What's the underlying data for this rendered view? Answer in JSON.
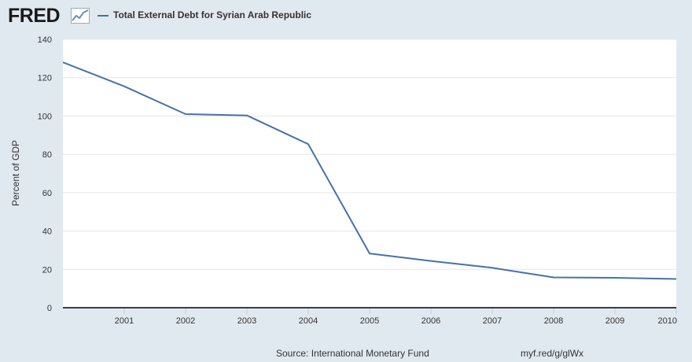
{
  "header": {
    "logo_text": "FRED",
    "logo_icon": "line-chart-icon",
    "legend_label": "Total External Debt for Syrian Arab Republic"
  },
  "colors": {
    "series": "#4572a7",
    "background": "#e1e9f0",
    "plot_background": "#ffffff",
    "grid": "#e6e6e6"
  },
  "footer": {
    "source": "Source: International Monetary Fund",
    "shortlink": "myf.red/g/glWx"
  },
  "chart_data": {
    "type": "line",
    "title": "",
    "xlabel": "",
    "ylabel": "Percent of GDP",
    "legend": "top-left",
    "grid": true,
    "xlim": [
      2000,
      2010
    ],
    "ylim": [
      0,
      140
    ],
    "x_ticks": [
      "2001",
      "2002",
      "2003",
      "2004",
      "2005",
      "2006",
      "2007",
      "2008",
      "2009",
      "2010"
    ],
    "y_ticks": [
      0,
      20,
      40,
      60,
      80,
      100,
      120,
      140
    ],
    "series": [
      {
        "name": "Total External Debt for Syrian Arab Republic",
        "x": [
          2000,
          2001,
          2002,
          2003,
          2004,
          2005,
          2006,
          2007,
          2008,
          2009,
          2010
        ],
        "y": [
          128,
          115.5,
          101,
          100.3,
          85.3,
          28.3,
          24.4,
          20.8,
          15.8,
          15.6,
          15
        ]
      }
    ]
  }
}
